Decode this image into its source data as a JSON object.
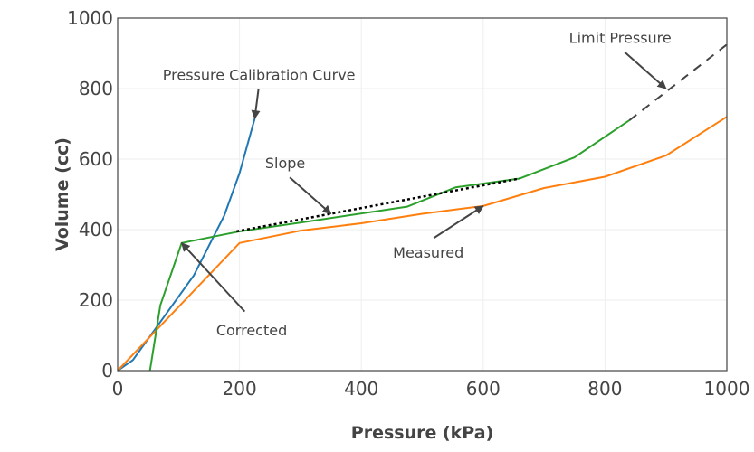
{
  "chart_data": {
    "type": "line",
    "title": "",
    "xlabel": "Pressure (kPa)",
    "ylabel": "Volume (cc)",
    "xlim": [
      0,
      1000
    ],
    "ylim": [
      0,
      1000
    ],
    "xticks": [
      0,
      200,
      400,
      600,
      800,
      1000
    ],
    "yticks": [
      0,
      200,
      400,
      600,
      800,
      1000
    ],
    "xtick_labels": [
      "0",
      "200",
      "400",
      "600",
      "800",
      "1000"
    ],
    "ytick_labels": [
      "0",
      "200",
      "400",
      "600",
      "800",
      "1000"
    ],
    "grid": true,
    "legend": "none",
    "series": [
      {
        "name": "Pressure Calibration Curve",
        "color": "#1f77b4",
        "style": "solid",
        "x": [
          0,
          25,
          125,
          175,
          200,
          225
        ],
        "y": [
          0,
          30,
          270,
          440,
          560,
          715
        ]
      },
      {
        "name": "Measured",
        "color": "#ff7f0e",
        "style": "solid",
        "x": [
          0,
          200,
          300,
          400,
          500,
          600,
          700,
          800,
          900,
          1000
        ],
        "y": [
          0,
          362,
          397,
          418,
          445,
          467,
          518,
          550,
          610,
          720
        ]
      },
      {
        "name": "Corrected",
        "color": "#2ca02c",
        "style": "solid",
        "x": [
          53,
          70,
          105,
          200,
          300,
          475,
          555,
          660,
          750,
          840
        ],
        "y": [
          0,
          185,
          362,
          395,
          420,
          465,
          520,
          545,
          605,
          710
        ]
      },
      {
        "name": "Slope",
        "color": "#000000",
        "style": "dotted",
        "x": [
          195,
          660
        ],
        "y": [
          395,
          545
        ]
      },
      {
        "name": "Limit Pressure",
        "color": "#444444",
        "style": "dashed",
        "x": [
          840,
          1000
        ],
        "y": [
          710,
          925
        ]
      }
    ],
    "annotations": [
      {
        "text": "Pressure Calibration Curve",
        "point": [
          225,
          715
        ],
        "label_at": [
          232,
          825
        ]
      },
      {
        "text": "Slope",
        "point": [
          350,
          445
        ],
        "label_at": [
          275,
          575
        ]
      },
      {
        "text": "Measured",
        "point": [
          600,
          467
        ],
        "label_at": [
          510,
          320
        ]
      },
      {
        "text": "Corrected",
        "point": [
          105,
          362
        ],
        "label_at": [
          220,
          100
        ]
      },
      {
        "text": "Limit Pressure",
        "point": [
          900,
          800
        ],
        "label_at": [
          825,
          930
        ]
      }
    ]
  }
}
